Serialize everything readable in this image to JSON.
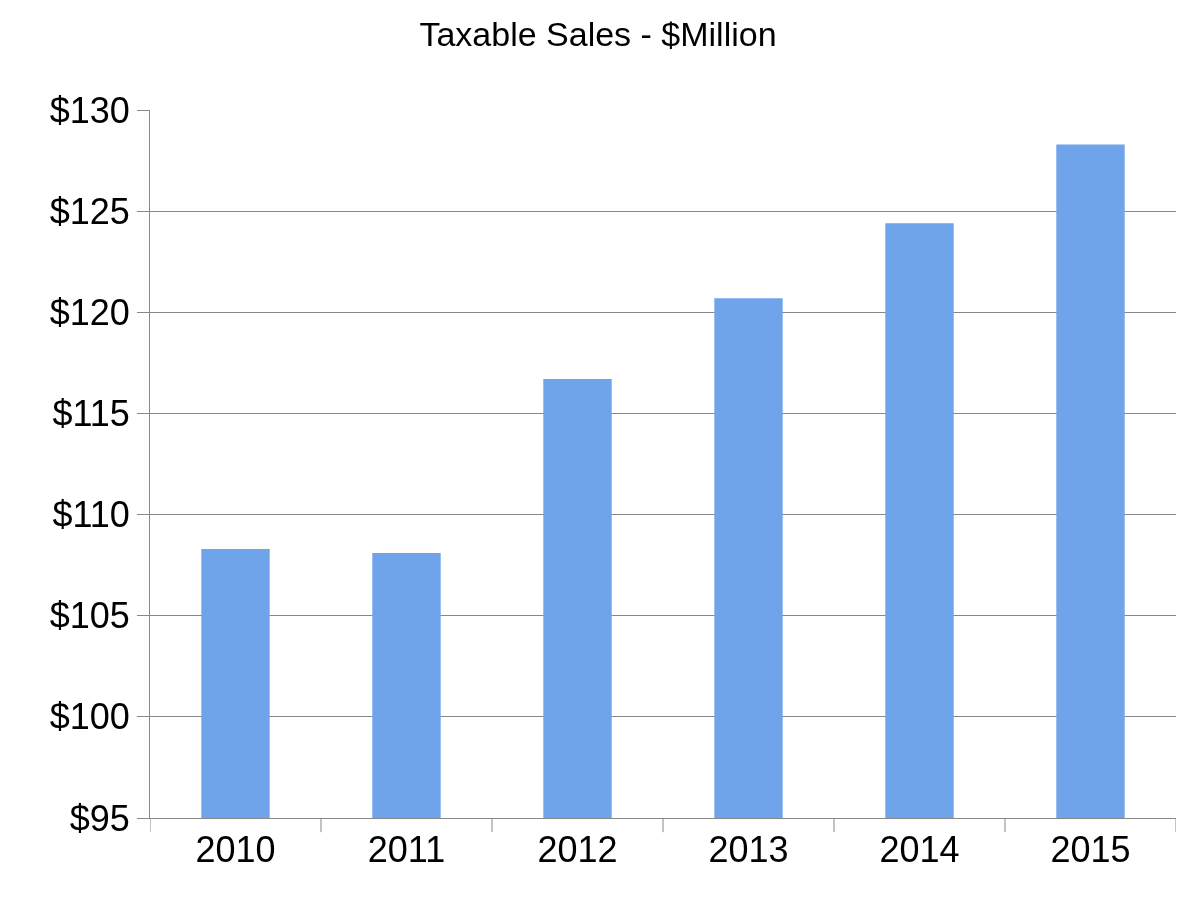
{
  "chart_data": {
    "type": "bar",
    "title": "Taxable Sales - $Million",
    "categories": [
      "2010",
      "2011",
      "2012",
      "2013",
      "2014",
      "2015"
    ],
    "values": [
      108.3,
      108.1,
      116.7,
      120.7,
      124.4,
      128.3
    ],
    "color": "#6fa3ea",
    "ylim": [
      95,
      130
    ],
    "yticks": [
      {
        "value": 95,
        "label": "$95"
      },
      {
        "value": 100,
        "label": "$100"
      },
      {
        "value": 105,
        "label": "$105"
      },
      {
        "value": 110,
        "label": "$110"
      },
      {
        "value": 115,
        "label": "$115"
      },
      {
        "value": 120,
        "label": "$120"
      },
      {
        "value": 125,
        "label": "$125"
      },
      {
        "value": 130,
        "label": "$130"
      }
    ],
    "grid": "y",
    "legend": false
  }
}
